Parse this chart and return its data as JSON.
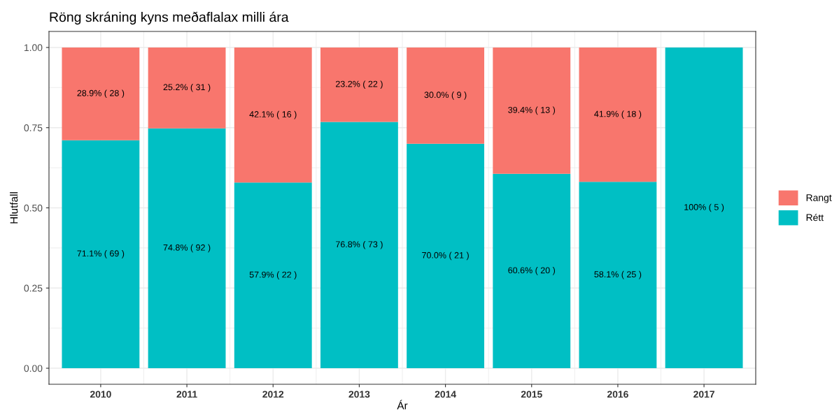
{
  "chart_data": {
    "type": "bar",
    "title": "Röng skráning kyns meðaflalax milli ára",
    "xlabel": "Ár",
    "ylabel": "Hlutfall",
    "categories": [
      "2010",
      "2011",
      "2012",
      "2013",
      "2014",
      "2015",
      "2016",
      "2017"
    ],
    "stacked": true,
    "series": [
      {
        "name": "Rétt",
        "color": "#00bfc4",
        "values": [
          0.711,
          0.748,
          0.579,
          0.768,
          0.7,
          0.606,
          0.581,
          1.0
        ],
        "value_labels": [
          "71.1% ( 69 )",
          "74.8% ( 92 )",
          "57.9% ( 22 )",
          "76.8% ( 73 )",
          "70.0% ( 21 )",
          "60.6% ( 20 )",
          "58.1% ( 25 )",
          "100% ( 5 )"
        ]
      },
      {
        "name": "Rangt",
        "color": "#f8766d",
        "values": [
          0.289,
          0.252,
          0.421,
          0.232,
          0.3,
          0.394,
          0.419,
          null
        ],
        "value_labels": [
          "28.9% ( 28 )",
          "25.2% ( 31 )",
          "42.1% ( 16 )",
          "23.2% ( 22 )",
          "30.0% ( 9 )",
          "39.4% ( 13 )",
          "41.9% ( 18 )",
          null
        ]
      }
    ],
    "ylim": [
      -0.05,
      1.05
    ],
    "yticks": [
      {
        "value": 0,
        "label": "0.00"
      },
      {
        "value": 0.25,
        "label": "0.25"
      },
      {
        "value": 0.5,
        "label": "0.50"
      },
      {
        "value": 0.75,
        "label": "0.75"
      },
      {
        "value": 1,
        "label": "1.00"
      }
    ],
    "grid": true,
    "legend": "right"
  }
}
